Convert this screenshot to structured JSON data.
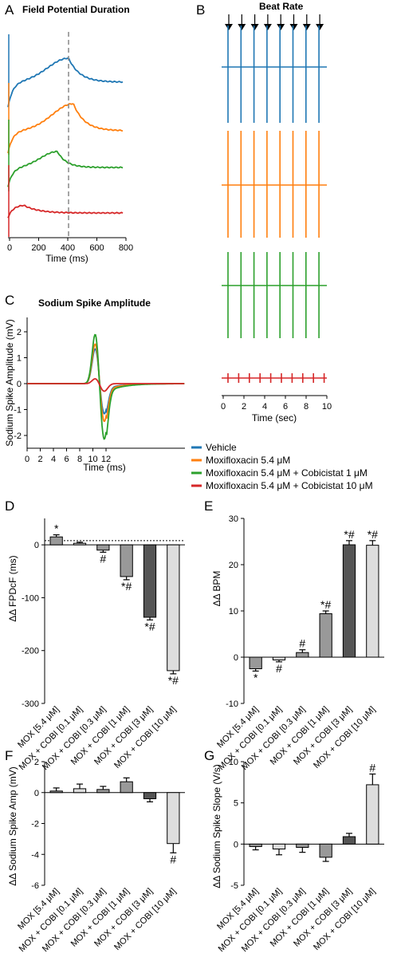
{
  "colors": {
    "vehicle": "#1f77b4",
    "mox": "#ff7f0e",
    "cobi1": "#2ca02c",
    "cobi10": "#d62728",
    "bar_dark": "#555555",
    "bar_mid": "#999999",
    "bar_light": "#dddddd"
  },
  "legend": [
    "Vehicle",
    "Moxifloxacin 5.4 μM",
    "Moxifloxacin 5.4 μM + Cobicistat 1 μM",
    "Moxifloxacin 5.4 μM + Cobicistat 10 μM"
  ],
  "panels": {
    "A": {
      "letter": "A",
      "title": "Field Potential Duration",
      "xlabel": "Time (ms)",
      "xticks": [
        "0",
        "200",
        "400",
        "600",
        "800"
      ]
    },
    "B": {
      "letter": "B",
      "title": "Beat Rate",
      "xlabel": "Time (sec)",
      "xticks": [
        "0",
        "2",
        "4",
        "6",
        "8",
        "10"
      ]
    },
    "C": {
      "letter": "C",
      "title": "Sodium Spike Amplitude",
      "xlabel": "Time (ms)",
      "ylabel": "Sodium Spike Amplitude (mV)",
      "xticks": [
        "0",
        "2",
        "4",
        "6",
        "8",
        "10",
        "12"
      ],
      "yticks": [
        "2",
        "1",
        "0",
        "-1",
        "-2"
      ]
    },
    "D": {
      "letter": "D",
      "ylabel": "ΔΔ FPDcF (ms)"
    },
    "E": {
      "letter": "E",
      "ylabel": "ΔΔ BPM"
    },
    "F": {
      "letter": "F",
      "ylabel": "ΔΔ Sodium Spike Amp (mV)"
    },
    "G": {
      "letter": "G",
      "ylabel": "ΔΔ Sodium Spike Slope (V/s)"
    }
  },
  "chart_data": [
    {
      "type": "bar",
      "panel": "D",
      "categories": [
        "MOX [5.4 μM]",
        "MOX + COBI [0.1 μM]",
        "MOX + COBI [0.3 μM]",
        "MOX + COBI [1 μM]",
        "MOX + COBI [3 μM]",
        "MOX + COBI [10 μM]"
      ],
      "values": [
        15,
        3,
        -10,
        -60,
        -137,
        -238
      ],
      "errors": [
        4,
        2,
        4,
        6,
        5,
        6
      ],
      "significance": [
        "*",
        "",
        "#",
        "*#",
        "*#",
        "*#"
      ],
      "ylim": [
        -300,
        50
      ],
      "yticks": [
        "0",
        "-100",
        "-200",
        "-300"
      ],
      "reference_line": 8
    },
    {
      "type": "bar",
      "panel": "E",
      "categories": [
        "MOX [5.4 μM]",
        "MOX + COBI [0.1 μM]",
        "MOX + COBI [0.3 μM]",
        "MOX + COBI [1 μM]",
        "MOX + COBI [3 μM]",
        "MOX + COBI [10 μM]"
      ],
      "values": [
        -2.5,
        -0.6,
        1.0,
        9.4,
        24.3,
        24.2
      ],
      "errors": [
        0.5,
        0.4,
        0.6,
        0.6,
        0.9,
        1.0
      ],
      "significance": [
        "*",
        "#",
        "#",
        "*#",
        "*#",
        "*#"
      ],
      "ylim": [
        -10,
        30
      ],
      "yticks": [
        "30",
        "20",
        "10",
        "0",
        "-10"
      ]
    },
    {
      "type": "bar",
      "panel": "F",
      "categories": [
        "MOX [5.4 μM]",
        "MOX + COBI [0.1 μM]",
        "MOX + COBI [0.3 μM]",
        "MOX + COBI [1 μM]",
        "MOX + COBI [3 μM]",
        "MOX + COBI [10 μM]"
      ],
      "values": [
        0.1,
        0.25,
        0.2,
        0.7,
        -0.4,
        -3.3
      ],
      "errors": [
        0.2,
        0.3,
        0.2,
        0.25,
        0.2,
        0.6
      ],
      "significance": [
        "",
        "",
        "",
        "",
        "",
        "#"
      ],
      "ylim": [
        -6,
        2
      ],
      "yticks": [
        "2",
        "0",
        "-2",
        "-4",
        "-6"
      ]
    },
    {
      "type": "bar",
      "panel": "G",
      "categories": [
        "MOX [5.4 μM]",
        "MOX + COBI [0.1 μM]",
        "MOX + COBI [0.3 μM]",
        "MOX + COBI [1 μM]",
        "MOX + COBI [3 μM]",
        "MOX + COBI [10 μM]"
      ],
      "values": [
        -0.3,
        -0.6,
        -0.4,
        -1.6,
        0.9,
        7.2
      ],
      "errors": [
        0.4,
        0.7,
        0.6,
        0.5,
        0.4,
        1.3
      ],
      "significance": [
        "",
        "",
        "",
        "",
        "",
        "#"
      ],
      "ylim": [
        -5,
        10
      ],
      "yticks": [
        "10",
        "5",
        "0",
        "-5"
      ]
    }
  ]
}
